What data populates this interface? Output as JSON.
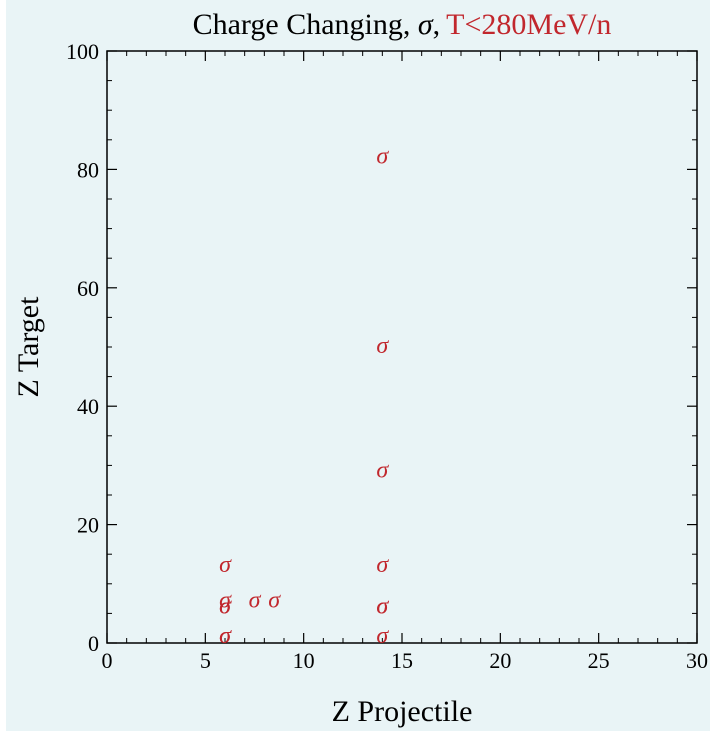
{
  "chart_data": {
    "type": "scatter",
    "title_black": "Charge Changing, ",
    "title_sigma": "σ",
    "title_sep": ",",
    "title_red": "T<280MeV/n",
    "xlabel": "Z  Projectile",
    "ylabel": "Z  Target",
    "xlim": [
      0,
      30
    ],
    "ylim": [
      0,
      100
    ],
    "xticks": [
      0,
      5,
      10,
      15,
      20,
      25,
      30
    ],
    "yticks": [
      0,
      20,
      40,
      60,
      80,
      100
    ],
    "marker_symbol": "σ",
    "marker_color": "#c1272d",
    "points": [
      {
        "x": 6,
        "y": 1
      },
      {
        "x": 6,
        "y": 1
      },
      {
        "x": 6,
        "y": 6
      },
      {
        "x": 6,
        "y": 6
      },
      {
        "x": 6,
        "y": 7
      },
      {
        "x": 6,
        "y": 13
      },
      {
        "x": 7.5,
        "y": 7
      },
      {
        "x": 8.5,
        "y": 7
      },
      {
        "x": 14,
        "y": 1
      },
      {
        "x": 14,
        "y": 6
      },
      {
        "x": 14,
        "y": 6
      },
      {
        "x": 14,
        "y": 13
      },
      {
        "x": 14,
        "y": 29
      },
      {
        "x": 14,
        "y": 50
      },
      {
        "x": 14,
        "y": 82
      }
    ],
    "grid": false,
    "legend": "none",
    "background": "#e9f4f6"
  }
}
